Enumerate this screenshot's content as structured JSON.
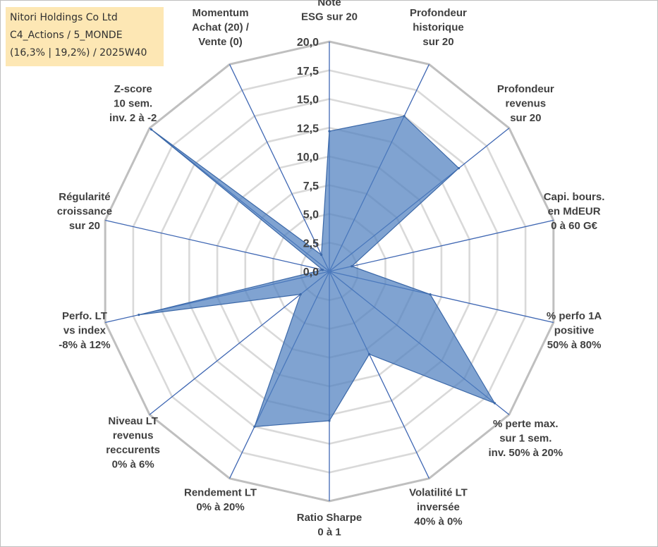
{
  "infobox": {
    "line1": "Nitori Holdings Co Ltd",
    "line2": "C4_Actions / 5_MONDE",
    "line3": "(16,3% | 19,2%) / 2025W40",
    "background_color": "#fde7b4"
  },
  "chart_data": {
    "type": "radar",
    "title": "",
    "rlim": [
      0,
      20
    ],
    "ticks": [
      "0,0",
      "2,5",
      "5,0",
      "7,5",
      "10,0",
      "12,5",
      "15,0",
      "17,5",
      "20,0"
    ],
    "tick_values": [
      0,
      2.5,
      5,
      7.5,
      10,
      12.5,
      15,
      17.5,
      20
    ],
    "grid": true,
    "legend": "none",
    "axes": [
      [
        "Note",
        "ESG sur 20"
      ],
      [
        "Profondeur",
        "historique",
        "sur 20"
      ],
      [
        "Profondeur",
        "revenus",
        "sur 20"
      ],
      [
        "Capi. bours.",
        "en MdEUR",
        "0 à 60 G€"
      ],
      [
        "% perfo 1A",
        "positive",
        "50% à 80%"
      ],
      [
        "% perte max.",
        "sur 1 sem.",
        "inv. 50% à 20%"
      ],
      [
        "Volatilité LT",
        "inversée",
        "40% à 0%"
      ],
      [
        "Ratio Sharpe",
        "0 à 1"
      ],
      [
        "Rendement LT",
        "0% à 20%"
      ],
      [
        "Niveau LT",
        "revenus",
        "reccurents",
        "0% à 6%"
      ],
      [
        "Perfo. LT",
        "vs index",
        "-8% à 12%"
      ],
      [
        "Régularité",
        "croissance",
        "sur 20"
      ],
      [
        "Z-score",
        "10 sem.",
        "inv. 2 à -2"
      ],
      [
        "Momentum",
        "Achat (20) /",
        "Vente (0)"
      ]
    ],
    "series": [
      {
        "values": [
          12.2,
          15.0,
          14.4,
          2.0,
          9.0,
          18.4,
          8.0,
          13.0,
          15.0,
          3.2,
          17.0,
          0.6,
          19.8,
          1.6
        ]
      }
    ],
    "colors": {
      "fill": "#4f7fbf",
      "fill_opacity": 0.72,
      "stroke": "#3b68a8",
      "spoke": "#3f67b3",
      "grid": "#d9d9d9",
      "outer_grid": "#bfbfbf"
    }
  }
}
